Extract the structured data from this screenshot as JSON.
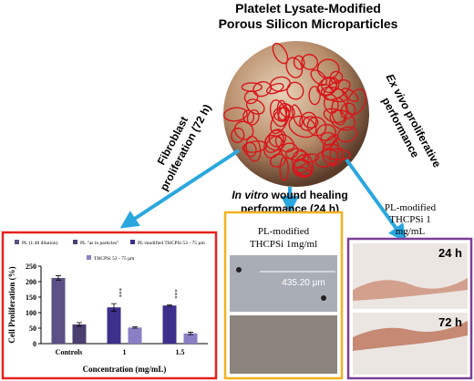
{
  "title_lines": [
    "Platelet Lysate-Modified",
    "Porous Silicon Microparticles"
  ],
  "left_arrow_label": [
    "Fibroblast",
    "proliferation (72 h)"
  ],
  "middle_arrow_label": {
    "italic": "In vitro",
    "rest": " wound healing",
    "line2": "performance (24 h)"
  },
  "right_arrow_label": {
    "italic": "Ex vivo",
    "rest": " proliferative",
    "line2": "performance"
  },
  "middle_panel": {
    "caption": [
      "PL-modified",
      "THCPSi 1mg/ml"
    ],
    "scale_label": "435.20 µm"
  },
  "right_panel": {
    "caption": [
      "PL-modified",
      "THCPSi 1",
      "mg/mL"
    ],
    "labels": [
      "24 h",
      "72 h"
    ]
  },
  "chart_data": {
    "type": "bar",
    "x_label": "Concentration (mg/mL)",
    "y_label": "Cell Proliferation (%)",
    "categories": [
      "Controls",
      "1",
      "1.5"
    ],
    "series": [
      {
        "name": "PL (1:40 dilution)",
        "color": "#5b5186",
        "values": [
          212,
          null,
          null
        ],
        "errors": [
          7,
          null,
          null
        ]
      },
      {
        "name": "PL \"as in particles\"",
        "color": "#4a3f70",
        "values": [
          62,
          null,
          null
        ],
        "errors": [
          6,
          null,
          null
        ]
      },
      {
        "name": "PL-modified THCPSi 53 - 75 µm",
        "color": "#3d2f8c",
        "values": [
          null,
          117,
          123
        ],
        "errors": [
          null,
          12,
          2
        ]
      },
      {
        "name": "THCPSi 53 - 75 µm",
        "color": "#8a7fc4",
        "values": [
          null,
          52,
          33
        ],
        "errors": [
          null,
          2,
          4
        ]
      }
    ],
    "annotations": [
      "***",
      "***"
    ],
    "ylim": [
      0,
      250
    ],
    "yticks": [
      0,
      50,
      100,
      150,
      200,
      250
    ]
  }
}
